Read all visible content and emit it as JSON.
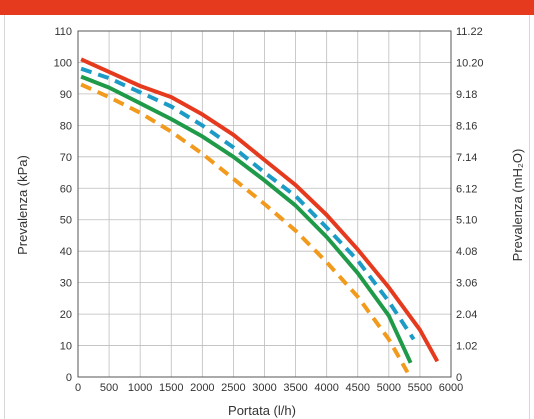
{
  "colors": {
    "top_bar": "#e63a1e",
    "grid": "#bdbdbd",
    "axis": "#555555",
    "text": "#333333"
  },
  "chart_data": {
    "type": "line",
    "xlabel": "Portata (l/h)",
    "ylabel": "Prevalenza (kPa)",
    "y2label": "Prevalenza (mH₂O)",
    "xlim": [
      0,
      6000
    ],
    "ylim": [
      0,
      110
    ],
    "x_ticks": [
      0,
      500,
      1000,
      1500,
      2000,
      2500,
      3000,
      3500,
      4000,
      4500,
      5000,
      5500,
      6000
    ],
    "y_ticks": [
      0,
      10,
      20,
      30,
      40,
      50,
      60,
      70,
      80,
      90,
      100,
      110
    ],
    "y2_ticks": [
      "0",
      "1.02",
      "2.04",
      "3.06",
      "4.08",
      "5.10",
      "6.12",
      "7.14",
      "8.16",
      "9.18",
      "10.20",
      "11.22"
    ],
    "grid": true,
    "series": [
      {
        "color": "#e63a1e",
        "dash": false,
        "points": [
          [
            50,
            101
          ],
          [
            500,
            97
          ],
          [
            1000,
            92.5
          ],
          [
            1500,
            89
          ],
          [
            2000,
            83.5
          ],
          [
            2500,
            77
          ],
          [
            3000,
            69
          ],
          [
            3500,
            61
          ],
          [
            4000,
            51.5
          ],
          [
            4500,
            40.5
          ],
          [
            5000,
            28.5
          ],
          [
            5500,
            15
          ],
          [
            5780,
            5
          ]
        ]
      },
      {
        "color": "#1c9bc6",
        "dash": true,
        "points": [
          [
            50,
            98
          ],
          [
            500,
            95
          ],
          [
            1000,
            90.5
          ],
          [
            1500,
            86
          ],
          [
            2000,
            80
          ],
          [
            2500,
            73
          ],
          [
            3000,
            65
          ],
          [
            3500,
            57.5
          ],
          [
            4000,
            47.5
          ],
          [
            4500,
            37
          ],
          [
            5000,
            24
          ],
          [
            5400,
            12
          ]
        ]
      },
      {
        "color": "#1f9a48",
        "dash": false,
        "points": [
          [
            50,
            95.5
          ],
          [
            500,
            92
          ],
          [
            1000,
            87
          ],
          [
            1500,
            82
          ],
          [
            2000,
            76.5
          ],
          [
            2500,
            70
          ],
          [
            3000,
            62.5
          ],
          [
            3500,
            54.5
          ],
          [
            4000,
            44.5
          ],
          [
            4500,
            33
          ],
          [
            5000,
            19.5
          ],
          [
            5350,
            4.5
          ]
        ]
      },
      {
        "color": "#f29a1c",
        "dash": true,
        "points": [
          [
            50,
            93
          ],
          [
            500,
            89
          ],
          [
            1000,
            84
          ],
          [
            1500,
            78
          ],
          [
            2000,
            71
          ],
          [
            2500,
            63
          ],
          [
            3000,
            55
          ],
          [
            3500,
            46.5
          ],
          [
            4000,
            36.5
          ],
          [
            4500,
            25.5
          ],
          [
            5000,
            12
          ],
          [
            5300,
            1.5
          ]
        ]
      }
    ]
  }
}
